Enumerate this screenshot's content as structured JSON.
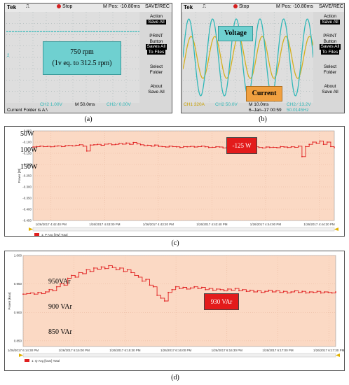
{
  "panel_a": {
    "caption": "(a)",
    "tek": "Tek",
    "run_state": "Stop",
    "mpos": "M Pos: -10.80ms",
    "mode": "SAVE/REC",
    "menu": [
      "Action",
      "Save All",
      "PRINT",
      "Button",
      "Saves All",
      "To Files",
      "Select",
      "Folder",
      "About",
      "Save All"
    ],
    "ch_marker": "2",
    "label_line1": "750 rpm",
    "label_line2": "(1v eq. to 312.5 rpm)",
    "bottom_ch": "CH2  1.00V",
    "bottom_m": "M 50.0ms",
    "bottom_trig": "CH2 ∕ 0.00V",
    "status": "Current Folder is A:\\"
  },
  "panel_b": {
    "caption": "(b)",
    "tek": "Tek",
    "run_state": "Stop",
    "mpos": "M Pos: -10.80ms",
    "mode": "SAVE/REC",
    "menu": [
      "Action",
      "Save All",
      "PRINT",
      "Button",
      "Saves All",
      "To Files",
      "Select",
      "Folder",
      "About",
      "Save All"
    ],
    "voltage_label": "Voltage",
    "current_label": "Current",
    "bottom_ch1": "CH1  320A",
    "bottom_ch2": "CH2  50.0V",
    "bottom_m": "M 10.0ms",
    "bottom_date": "6–Jan–17 00:59",
    "bottom_trig": "CH2 ∕ 13.2V",
    "bottom_freq": "50.0145Hz"
  },
  "panel_c": {
    "caption": "(c)",
    "box_label": "-125 W",
    "overlay_labels": [
      "50W",
      "100W",
      "150W"
    ],
    "ylabel": "Power [W]",
    "legend": "1: P Avg [kW] Total"
  },
  "panel_d": {
    "caption": "(d)",
    "box_label": "930 VAr",
    "overlay_labels": [
      "950VAr",
      "900 VAr",
      "850 VAr"
    ],
    "ylabel": "Power [kvar]",
    "legend": "1: Q Avg [kvar] Total"
  },
  "chart_data": [
    {
      "type": "line",
      "ylabel": "Power [W]",
      "y_tick_labels": [
        "-0.050",
        "-0.100",
        "-0.150",
        "-0.200",
        "-0.250",
        "-0.300",
        "-0.350",
        "-0.400",
        "-0.450"
      ],
      "ylim": [
        -0.45,
        -0.05
      ],
      "x_tick_labels": [
        "1/26/2017 4:42:40 PM",
        "1/26/2017 4:43:00 PM",
        "1/26/2017 4:43:20 PM",
        "1/26/2017 4:43:40 PM",
        "1/26/2017 4:44:00 PM",
        "1/26/2017 4:44:20 PM"
      ],
      "legend": "1: P Avg [kW] Total",
      "series": [
        {
          "values": [
            -0.122,
            -0.12,
            -0.118,
            -0.12,
            -0.119,
            -0.121,
            -0.118,
            -0.117,
            -0.12,
            -0.116,
            -0.115,
            -0.117,
            -0.114,
            -0.112,
            -0.118,
            -0.14,
            -0.113,
            -0.112,
            -0.11,
            -0.114,
            -0.109,
            -0.108,
            -0.112,
            -0.11,
            -0.106,
            -0.109,
            -0.104,
            -0.11,
            -0.102,
            -0.108,
            -0.112,
            -0.116,
            -0.114,
            -0.118,
            -0.113,
            -0.119,
            -0.12,
            -0.122,
            -0.118,
            -0.12,
            -0.121,
            -0.124,
            -0.12,
            -0.121,
            -0.119,
            -0.122,
            -0.12,
            -0.118,
            -0.121,
            -0.124,
            -0.123,
            -0.121,
            -0.122,
            -0.126,
            -0.123,
            -0.124,
            -0.13,
            -0.125,
            -0.124,
            -0.122,
            -0.125,
            -0.123,
            -0.121,
            -0.124,
            -0.126,
            -0.122,
            -0.124,
            -0.123,
            -0.125,
            -0.12,
            -0.122,
            -0.124,
            -0.121,
            -0.123,
            -0.118,
            -0.165,
            -0.12,
            -0.11,
            -0.1,
            -0.105,
            -0.095,
            -0.11,
            -0.1,
            -0.12,
            -0.125
          ]
        }
      ]
    },
    {
      "type": "line",
      "ylabel": "Power [kvar]",
      "y_tick_labels": [
        "1.000",
        "0.950",
        "0.900",
        "0.850"
      ],
      "ylim": [
        0.84,
        1.0
      ],
      "x_tick_labels": [
        "1/26/2017 6:14:30 PM",
        "1/26/2017 6:15:00 PM",
        "1/26/2017 6:15:30 PM",
        "1/26/2017 6:16:00 PM",
        "1/26/2017 6:16:30 PM",
        "1/26/2017 6:17:00 PM",
        "1/26/2017 6:17:30 PM"
      ],
      "legend": "1: Q Avg [kvar] Total",
      "series": [
        {
          "values": [
            0.932,
            0.933,
            0.934,
            0.932,
            0.935,
            0.933,
            0.936,
            0.94,
            0.938,
            0.945,
            0.95,
            0.948,
            0.96,
            0.965,
            0.962,
            0.97,
            0.968,
            0.975,
            0.972,
            0.978,
            0.976,
            0.98,
            0.977,
            0.982,
            0.979,
            0.975,
            0.978,
            0.972,
            0.975,
            0.97,
            0.965,
            0.962,
            0.955,
            0.958,
            0.948,
            0.945,
            0.93,
            0.925,
            0.92,
            0.935,
            0.94,
            0.945,
            0.942,
            0.944,
            0.941,
            0.943,
            0.945,
            0.942,
            0.944,
            0.94,
            0.942,
            0.939,
            0.941,
            0.94,
            0.938,
            0.941,
            0.939,
            0.942,
            0.938,
            0.94,
            0.937,
            0.939,
            0.936,
            0.938,
            0.935,
            0.937,
            0.939,
            0.936,
            0.938,
            0.935,
            0.937,
            0.934,
            0.936,
            0.938,
            0.935,
            0.937,
            0.934,
            0.936,
            0.935,
            0.937,
            0.934,
            0.936,
            0.935,
            0.934,
            0.936
          ]
        }
      ]
    }
  ]
}
